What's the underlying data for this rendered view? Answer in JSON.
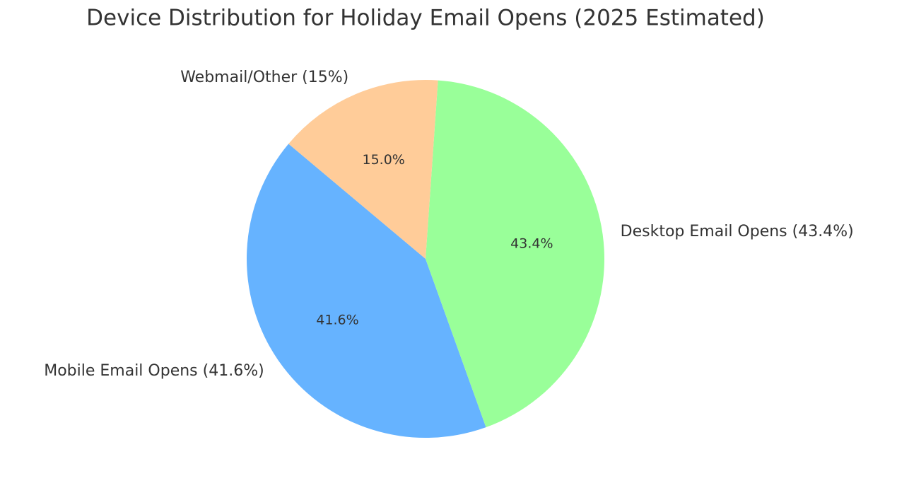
{
  "chart_data": {
    "type": "pie",
    "title": "Device Distribution for Holiday Email Opens (2025 Estimated)",
    "categories": [
      "Mobile Email Opens (41.6%)",
      "Desktop Email Opens (43.4%)",
      "Webmail/Other (15%)"
    ],
    "values": [
      41.6,
      43.4,
      15
    ],
    "value_labels": [
      "41.6%",
      "43.4%",
      "15.0%"
    ],
    "colors": [
      "#66b3ff",
      "#99ff99",
      "#ffcc99"
    ]
  }
}
